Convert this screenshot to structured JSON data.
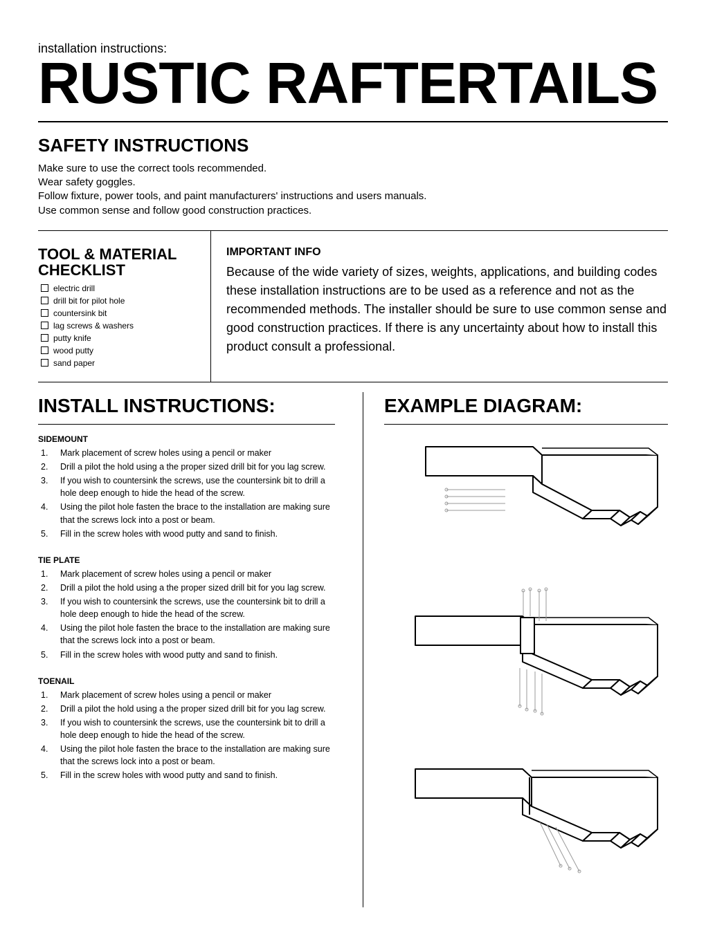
{
  "pretitle": "installation instructions:",
  "main_title": "RUSTIC RAFTERTAILS",
  "safety": {
    "heading": "SAFETY INSTRUCTIONS",
    "lines": [
      "Make sure to use the correct tools recommended.",
      "Wear safety goggles.",
      "Follow fixture, power tools, and paint manufacturers' instructions and users manuals.",
      "Use common sense and follow good construction practices."
    ]
  },
  "tools": {
    "heading1": "TOOL & MATERIAL",
    "heading2": "CHECKLIST",
    "items": [
      "electric drill",
      "drill bit for pilot hole",
      "countersink bit",
      "lag screws & washers",
      "putty knife",
      "wood putty",
      "sand paper"
    ]
  },
  "info": {
    "heading": "IMPORTANT INFO",
    "body": "Because of the wide variety of sizes, weights, applications, and building codes these installation instructions are to be used as a reference and not as the recommended methods. The installer should be sure to use common sense and good construction practices. If there is any uncertainty about how to install this product consult a professional."
  },
  "install": {
    "heading": "INSTALL INSTRUCTIONS:",
    "sections": [
      {
        "title": "SIDEMOUNT",
        "steps": [
          "Mark placement of screw holes using a pencil or maker",
          "Drill a pilot the hold using a the proper sized drill bit for you lag screw.",
          "If you wish to countersink the screws, use the countersink bit to drill a hole deep enough to hide the head of the screw.",
          "Using the pilot hole fasten the brace to the installation are making sure that the screws lock into a post or beam.",
          "Fill in the screw holes with wood putty and sand to finish."
        ]
      },
      {
        "title": "TIE PLATE",
        "steps": [
          "Mark placement of screw holes using a pencil or maker",
          "Drill a pilot the hold using a the proper sized drill bit for you lag screw.",
          "If you wish to countersink the screws, use the countersink bit to drill a hole deep enough to hide the head of the screw.",
          "Using the pilot hole fasten the brace to the installation are making sure that the screws lock into a post or beam.",
          "Fill in the screw holes with wood putty and sand to finish."
        ]
      },
      {
        "title": "TOENAIL",
        "steps": [
          "Mark placement of screw holes using a pencil or maker",
          "Drill a pilot the hold using a the proper sized drill bit for you lag screw.",
          "If you wish to countersink the screws, use the countersink bit to drill a hole deep enough to hide the head of the screw.",
          "Using the pilot hole fasten the brace to the installation are making sure that the screws lock into a post or beam.",
          "Fill in the screw holes with wood putty and sand to finish."
        ]
      }
    ]
  },
  "diagram": {
    "heading": "EXAMPLE DIAGRAM:",
    "stroke": "#000000",
    "screw_stroke": "#9a9a9a",
    "stroke_width": 2,
    "screw_width": 1
  }
}
